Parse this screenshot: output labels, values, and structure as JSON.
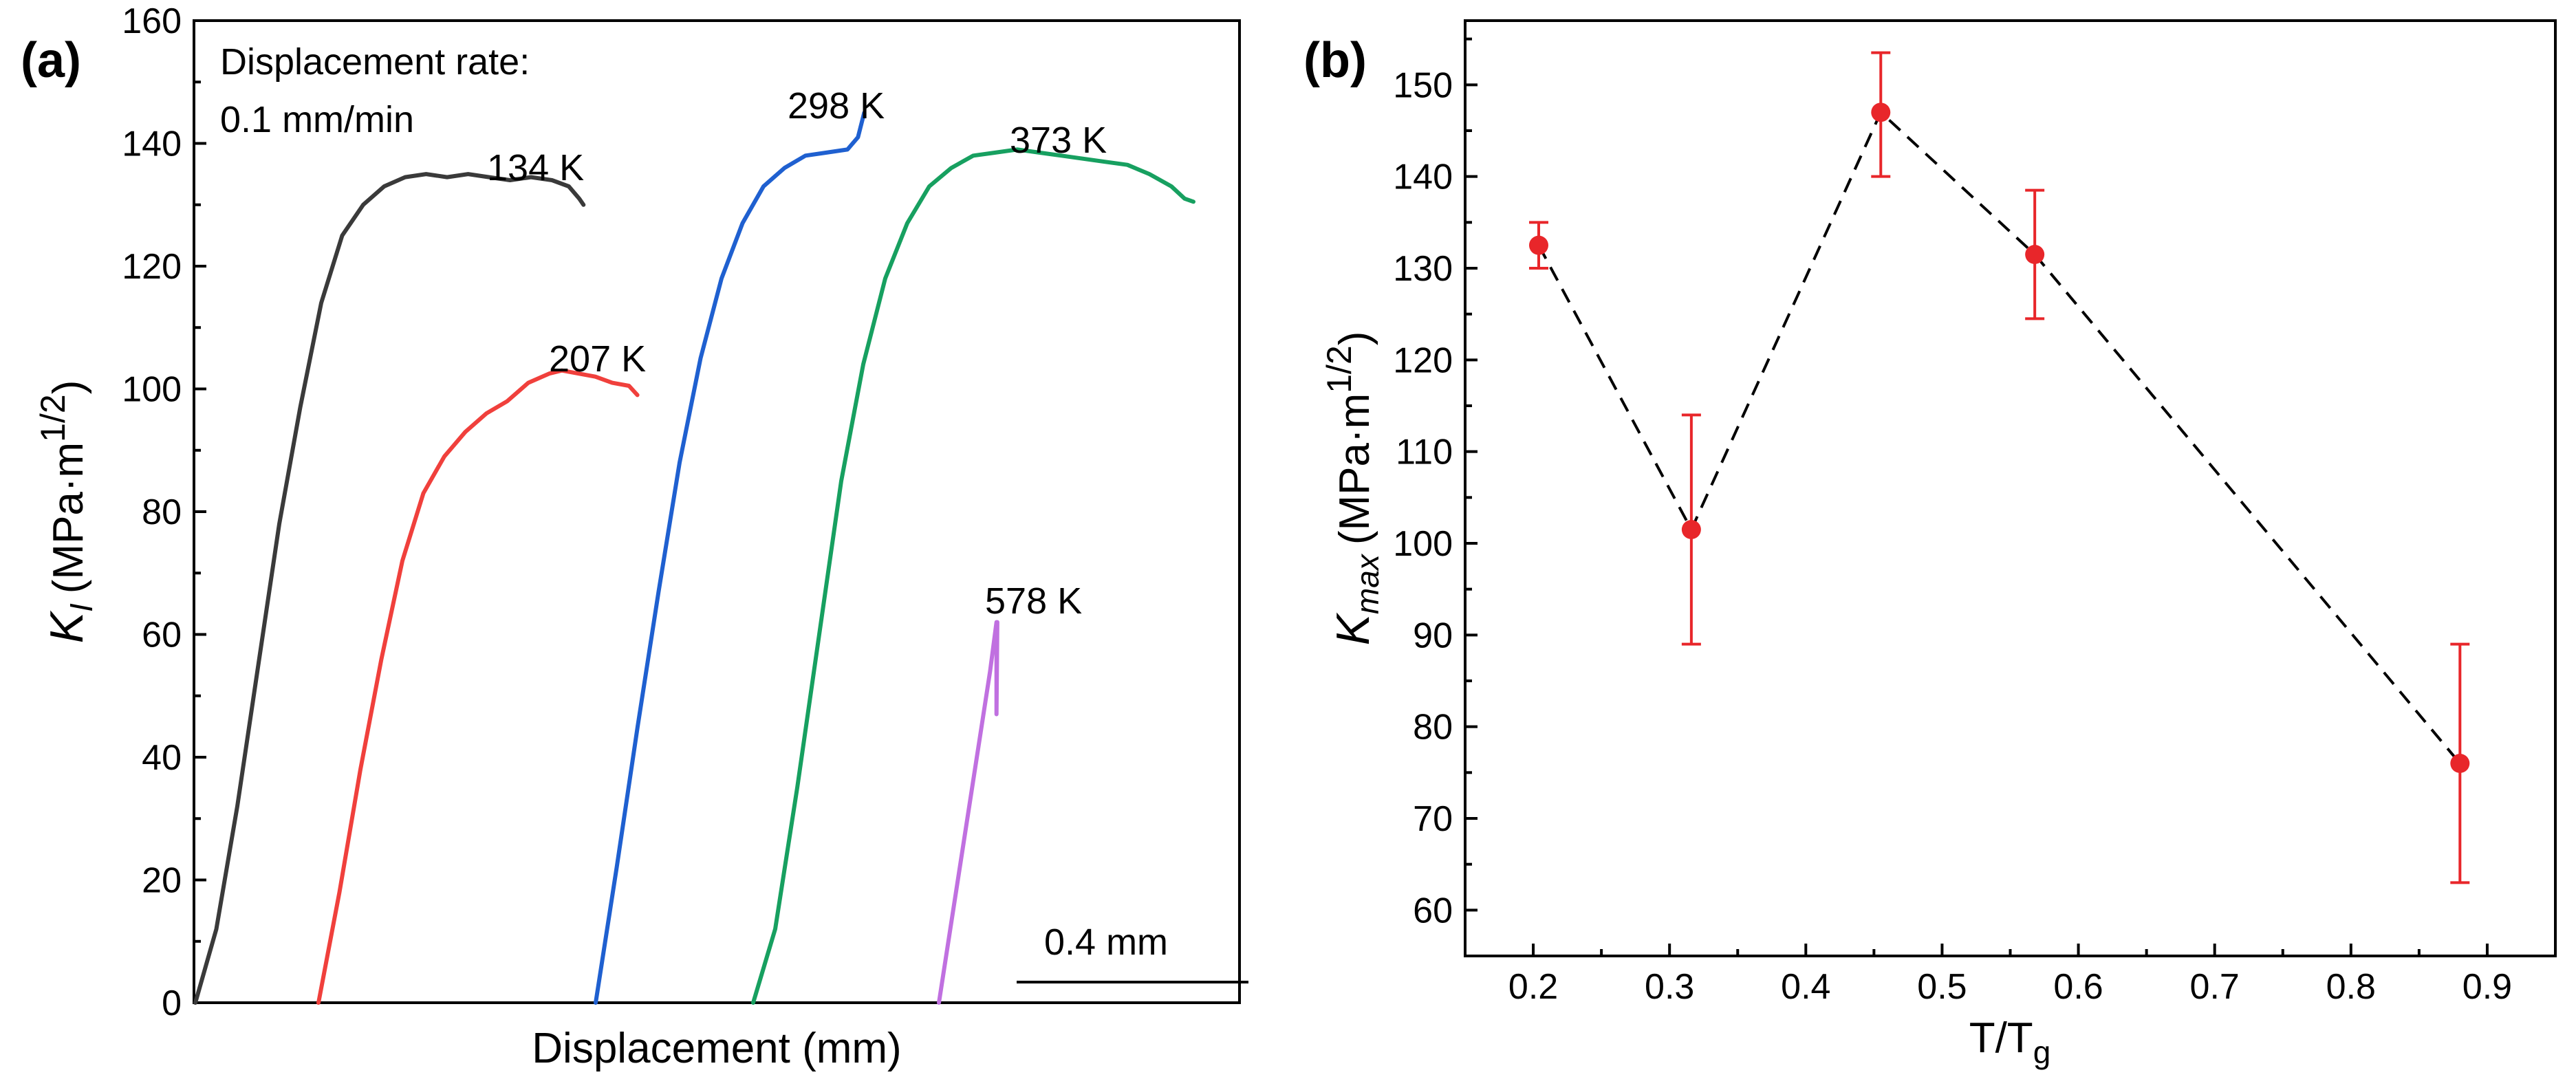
{
  "chart_data": [
    {
      "panel_label": "(a)",
      "type": "line",
      "xlabel": "Displacement (mm)",
      "ylabel_main": "K",
      "ylabel_sub": "I",
      "ylabel_units": "(MPa·m",
      "ylabel_exp": "1/2",
      "ylabel_close": ")",
      "ylim": [
        0,
        160
      ],
      "yticks": [
        "0",
        "20",
        "40",
        "60",
        "80",
        "100",
        "120",
        "140",
        "160"
      ],
      "annotation_line1": "Displacement rate:",
      "annotation_line2": "0.1 mm/min",
      "scale_bar_label": "0.4 mm",
      "scale_bar_length_mm": 0.4,
      "x_unit": "mm (relative, curves offset horizontally)",
      "series": [
        {
          "name": "134 K",
          "color": "#3a3a3a",
          "x": [
            0.0,
            0.05,
            0.1,
            0.15,
            0.2,
            0.25,
            0.3,
            0.35,
            0.4,
            0.45,
            0.5,
            0.55,
            0.6,
            0.65,
            0.7,
            0.75,
            0.8,
            0.85,
            0.89,
            0.915,
            0.925
          ],
          "y": [
            0,
            12,
            32,
            55,
            78,
            97,
            114,
            125,
            130,
            133,
            134.5,
            135,
            134.5,
            135,
            134.5,
            134,
            134.5,
            134,
            133,
            131,
            130
          ]
        },
        {
          "name": "207 K",
          "color": "#f0403c",
          "x": [
            0.0,
            0.05,
            0.1,
            0.15,
            0.2,
            0.25,
            0.3,
            0.35,
            0.4,
            0.45,
            0.5,
            0.55,
            0.58,
            0.62,
            0.66,
            0.7,
            0.74,
            0.76
          ],
          "y": [
            0,
            18,
            38,
            56,
            72,
            83,
            89,
            93,
            96,
            98,
            101,
            102.5,
            103,
            102.5,
            102,
            101,
            100.5,
            99
          ]
        },
        {
          "name": "298 K",
          "color": "#1f60d0",
          "x": [
            0.0,
            0.05,
            0.1,
            0.15,
            0.2,
            0.25,
            0.3,
            0.35,
            0.4,
            0.45,
            0.5,
            0.55,
            0.6,
            0.625,
            0.64
          ],
          "y": [
            0,
            22,
            45,
            67,
            88,
            105,
            118,
            127,
            133,
            136,
            138,
            138.5,
            139,
            141,
            145
          ]
        },
        {
          "name": "373 K",
          "color": "#17a060",
          "x": [
            0.0,
            0.05,
            0.1,
            0.15,
            0.2,
            0.25,
            0.3,
            0.35,
            0.4,
            0.45,
            0.5,
            0.55,
            0.6,
            0.65,
            0.7,
            0.75,
            0.8,
            0.85,
            0.9,
            0.95,
            0.98,
            1.0
          ],
          "y": [
            0,
            12,
            35,
            60,
            85,
            104,
            118,
            127,
            133,
            136,
            138,
            138.5,
            139,
            138.5,
            138,
            137.5,
            137,
            136.5,
            135,
            133,
            131,
            130.5
          ]
        },
        {
          "name": "578 K",
          "color": "#c070e0",
          "x": [
            0.0,
            0.02,
            0.04,
            0.06,
            0.08,
            0.1,
            0.12,
            0.135,
            0.135,
            0.137
          ],
          "y": [
            0,
            9,
            18,
            27,
            36,
            45,
            54,
            62,
            47,
            62
          ]
        }
      ]
    },
    {
      "panel_label": "(b)",
      "type": "scatter",
      "xlabel_main": "T/T",
      "xlabel_sub": "g",
      "ylabel_main": "K",
      "ylabel_sub": "max",
      "ylabel_units": "(MPa·m",
      "ylabel_exp": "1/2",
      "ylabel_close": ")",
      "xlim": [
        0.15,
        0.95
      ],
      "ylim": [
        55,
        157
      ],
      "xticks": [
        "0.2",
        "0.3",
        "0.4",
        "0.5",
        "0.6",
        "0.7",
        "0.8",
        "0.9"
      ],
      "yticks": [
        "60",
        "70",
        "80",
        "90",
        "100",
        "110",
        "120",
        "130",
        "140",
        "150"
      ],
      "point_color": "#e8262a",
      "line_style": "dashed",
      "points": [
        {
          "x": 0.204,
          "y": 132.5,
          "err_low": 130.0,
          "err_high": 135.0
        },
        {
          "x": 0.316,
          "y": 101.5,
          "err_low": 89.0,
          "err_high": 114.0
        },
        {
          "x": 0.455,
          "y": 147.0,
          "err_low": 140.0,
          "err_high": 153.5
        },
        {
          "x": 0.568,
          "y": 131.5,
          "err_low": 124.5,
          "err_high": 138.5
        },
        {
          "x": 0.88,
          "y": 76.0,
          "err_low": 63.0,
          "err_high": 89.0
        }
      ]
    }
  ]
}
